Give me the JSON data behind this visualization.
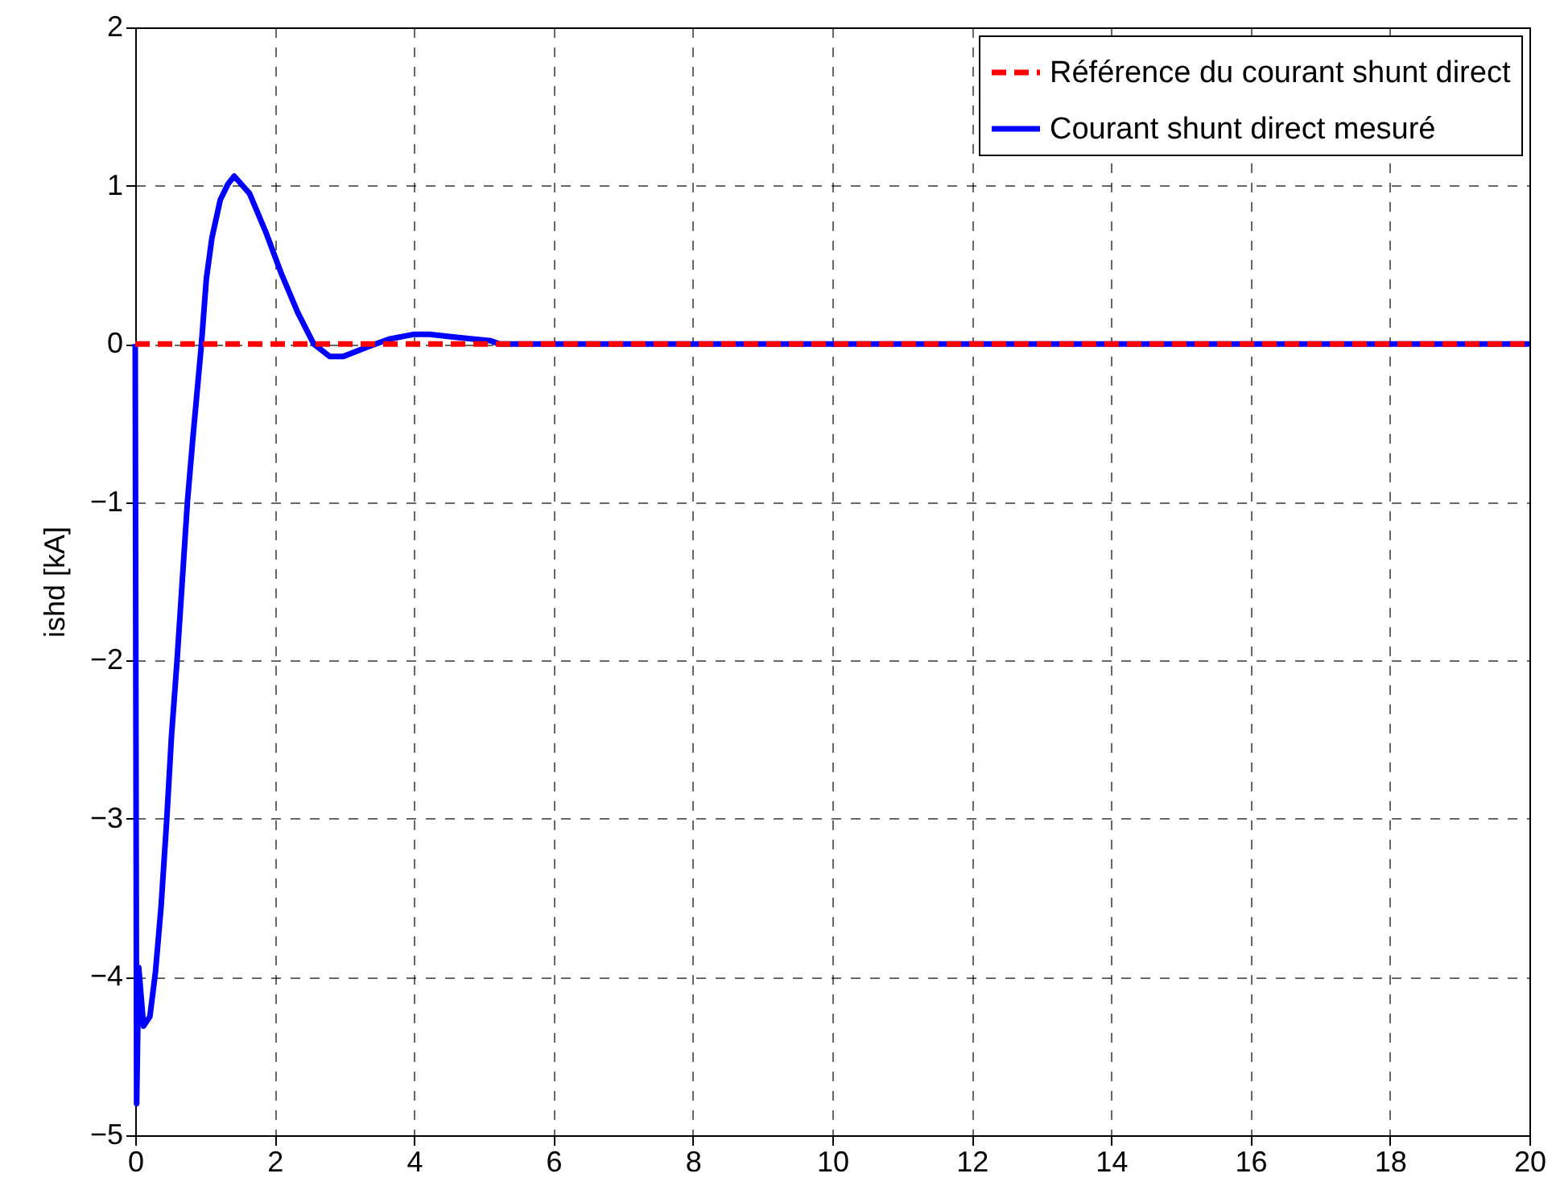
{
  "chart_data": {
    "type": "line",
    "ylabel": "ishd [kA]",
    "xlim": [
      0,
      20
    ],
    "xticks": [
      0,
      2,
      4,
      6,
      8,
      10,
      12,
      14,
      16,
      18,
      20
    ],
    "ylim": [
      -5,
      2
    ],
    "yticks": [
      -5,
      -4,
      -3,
      -2,
      -1,
      0,
      1,
      2
    ],
    "grid": true,
    "legend": "top right",
    "series": [
      {
        "name": "Référence du courant shunt direct",
        "color": "#ff0000",
        "line_style": "dashed",
        "x": [
          0,
          20
        ],
        "values": [
          0,
          0
        ]
      },
      {
        "name": "Courant shunt direct mesuré",
        "color": "#0000ff",
        "line_style": "solid",
        "x": [
          0,
          0.02,
          0.05,
          0.12,
          0.21,
          0.29,
          0.37,
          0.45,
          0.52,
          0.6,
          0.67,
          0.75,
          0.83,
          0.95,
          1.02,
          1.1,
          1.22,
          1.33,
          1.42,
          1.64,
          1.87,
          2.1,
          2.33,
          2.56,
          2.79,
          2.98,
          3.33,
          3.64,
          3.99,
          4.22,
          4.64,
          5.1,
          5.22,
          20
        ],
        "values": [
          0,
          -4.8,
          -3.94,
          -4.31,
          -4.25,
          -3.97,
          -3.56,
          -3.02,
          -2.48,
          -2.0,
          -1.53,
          -0.99,
          -0.58,
          0,
          0.41,
          0.67,
          0.91,
          1.01,
          1.06,
          0.95,
          0.71,
          0.44,
          0.2,
          0,
          -0.08,
          -0.08,
          -0.02,
          0.03,
          0.06,
          0.06,
          0.04,
          0.02,
          0,
          0
        ]
      }
    ]
  }
}
